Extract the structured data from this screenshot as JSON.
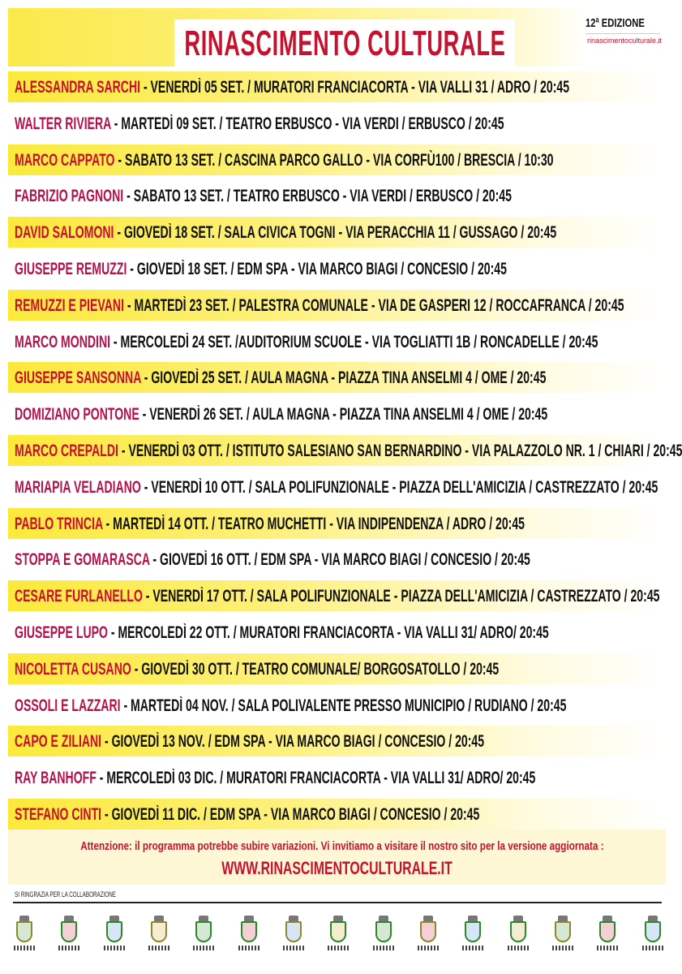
{
  "header": {
    "title": "RINASCIMENTO CULTURALE",
    "edition": "12ª EDIZIONE",
    "site": "rinascimentoculturale.it"
  },
  "events": [
    {
      "name": "ALESSANDRA SARCHI",
      "details": " - VENERDÌ 05 SET. / MURATORI FRANCIACORTA - VIA VALLI 31 / ADRO / 20:45"
    },
    {
      "name": "WALTER RIVIERA",
      "details": " - MARTEDÌ 09 SET. / TEATRO ERBUSCO - VIA VERDI / ERBUSCO / 20:45"
    },
    {
      "name": "MARCO CAPPATO",
      "details": " - SABATO 13 SET. / CASCINA PARCO GALLO - VIA CORFÙ100 / BRESCIA / 10:30"
    },
    {
      "name": "FABRIZIO PAGNONI",
      "details": " - SABATO 13 SET. / TEATRO ERBUSCO - VIA VERDI / ERBUSCO / 20:45"
    },
    {
      "name": "DAVID SALOMONI",
      "details": "  - GIOVEDÌ 18 SET. / SALA CIVICA TOGNI - VIA PERACCHIA 11 / GUSSAGO / 20:45"
    },
    {
      "name": "GIUSEPPE REMUZZI",
      "details": "  - GIOVEDÌ 18 SET. / EDM SPA - VIA MARCO BIAGI / CONCESIO / 20:45"
    },
    {
      "name": "REMUZZI E PIEVANI",
      "details": "  - MARTEDÌ 23 SET. / PALESTRA COMUNALE - VIA DE GASPERI 12 / ROCCAFRANCA / 20:45"
    },
    {
      "name": "MARCO MONDINI",
      "details": "  - MERCOLEDÌ 24 SET. /AUDITORIUM SCUOLE - VIA TOGLIATTI 1B / RONCADELLE / 20:45"
    },
    {
      "name": "GIUSEPPE SANSONNA",
      "details": "  - GIOVEDÌ 25 SET. / AULA MAGNA - PIAZZA TINA ANSELMI 4 / OME / 20:45"
    },
    {
      "name": "DOMIZIANO PONTONE",
      "details": "  - VENERDÌ 26 SET. / AULA MAGNA - PIAZZA TINA ANSELMI 4 / OME / 20:45"
    },
    {
      "name": "MARCO CREPALDI",
      "details": "  - VENERDÌ 03 OTT. / ISTITUTO SALESIANO SAN BERNARDINO - VIA PALAZZOLO NR. 1   / CHIARI / 20:45"
    },
    {
      "name": "MARIAPIA VELADIANO",
      "details": "  - VENERDÌ 10 OTT. / SALA POLIFUNZIONALE - PIAZZA DELL'AMICIZIA / CASTREZZATO / 20:45"
    },
    {
      "name": "PABLO TRINCIA",
      "details": "  - MARTEDÌ 14 OTT. / TEATRO MUCHETTI - VIA INDIPENDENZA / ADRO / 20:45"
    },
    {
      "name": "STOPPA E GOMARASCA",
      "details": "  - GIOVEDÌ 16 OTT. / EDM SPA - VIA MARCO BIAGI / CONCESIO / 20:45"
    },
    {
      "name": "CESARE FURLANELLO",
      "details": "  - VENERDÌ 17 OTT. / SALA POLIFUNZIONALE - PIAZZA DELL'AMICIZIA / CASTREZZATO / 20:45"
    },
    {
      "name": "GIUSEPPE LUPO",
      "details": " - MERCOLEDÌ 22 OTT. / MURATORI FRANCIACORTA - VIA VALLI 31/ ADRO/ 20:45"
    },
    {
      "name": "NICOLETTA CUSANO",
      "details": " - GIOVEDÌ 30 OTT. / TEATRO COMUNALE/ BORGOSATOLLO / 20:45"
    },
    {
      "name": "OSSOLI E LAZZARI",
      "details": " - MARTEDÌ 04 NOV. / SALA POLIVALENTE PRESSO MUNICIPIO / RUDIANO / 20:45"
    },
    {
      "name": "CAPO E ZILIANI",
      "details": " - GIOVEDÌ 13 NOV. / EDM SPA - VIA MARCO BIAGI / CONCESIO / 20:45"
    },
    {
      "name": "RAY BANHOFF",
      "details": " - MERCOLEDÌ 03 DIC. / MURATORI FRANCIACORTA - VIA VALLI 31/ ADRO/ 20:45"
    },
    {
      "name": "STEFANO CINTI",
      "details": " - GIOVEDÌ 11 DIC. / EDM SPA - VIA MARCO BIAGI / CONCESIO / 20:45"
    }
  ],
  "notice": {
    "text": "Attenzione: il programma potrebbe subire variazioni. Vi invitiamo a visitare il nostro sito per la versione aggiornata :",
    "url": "WWW.RINASCIMENTOCULTURALE.IT"
  },
  "footer": {
    "thanks": "SI RINGRAZIA PER LA COLLABORAZIONE",
    "logo_count": 15
  },
  "colors": {
    "accent": "#c4132f",
    "highlight": "#fbe93a"
  }
}
